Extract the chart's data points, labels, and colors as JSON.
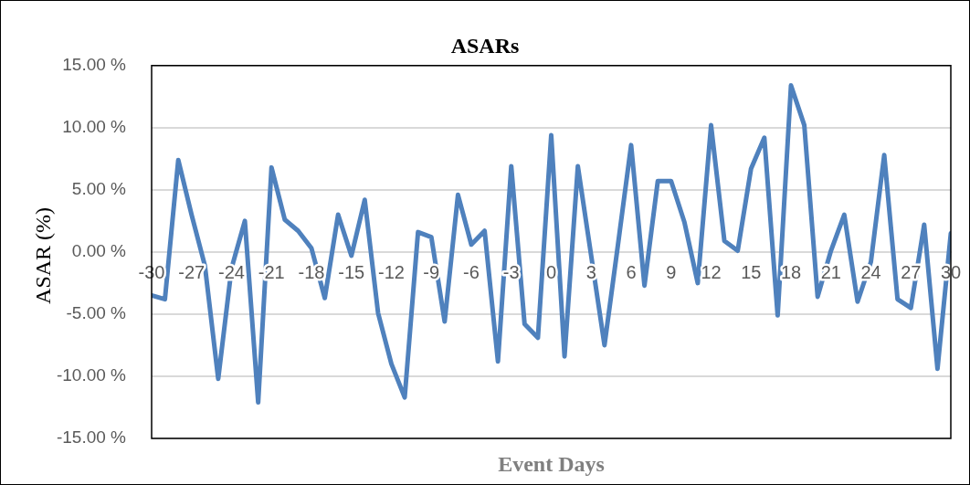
{
  "chart_data": {
    "type": "line",
    "title": "ASARs",
    "xlabel": "Event Days",
    "ylabel": "ASAR (%)",
    "x": [
      -30,
      -29,
      -28,
      -27,
      -26,
      -25,
      -24,
      -23,
      -22,
      -21,
      -20,
      -19,
      -18,
      -17,
      -16,
      -15,
      -14,
      -13,
      -12,
      -11,
      -10,
      -9,
      -8,
      -7,
      -6,
      -5,
      -4,
      -3,
      -2,
      -1,
      0,
      1,
      2,
      3,
      4,
      5,
      6,
      7,
      8,
      9,
      10,
      11,
      12,
      13,
      14,
      15,
      16,
      17,
      18,
      19,
      20,
      21,
      22,
      23,
      24,
      25,
      26,
      27,
      28,
      29,
      30
    ],
    "series": [
      {
        "color": "#4f81bd",
        "values": [
          -3.5,
          -3.8,
          7.4,
          3.0,
          -1.1,
          -10.2,
          -1.3,
          2.5,
          -12.1,
          6.8,
          2.6,
          1.7,
          0.3,
          -3.7,
          3.0,
          -0.3,
          4.2,
          -4.9,
          -9.0,
          -11.7,
          1.6,
          1.2,
          -5.6,
          4.6,
          0.6,
          1.7,
          -8.8,
          6.9,
          -5.8,
          -6.9,
          9.4,
          -8.4,
          6.9,
          -0.3,
          -7.5,
          0.5,
          8.6,
          -2.7,
          5.7,
          5.7,
          2.4,
          -2.5,
          10.2,
          0.9,
          0.1,
          6.7,
          9.2,
          -5.1,
          13.4,
          10.2,
          -3.6,
          0.1,
          3.0,
          -4.0,
          -0.8,
          7.8,
          -3.8,
          -4.5,
          2.2,
          -9.4,
          1.5
        ]
      }
    ],
    "xlim": [
      -30,
      30
    ],
    "xticks": [
      -30,
      -27,
      -24,
      -21,
      -18,
      -15,
      -12,
      -9,
      -6,
      -3,
      0,
      3,
      6,
      9,
      12,
      15,
      18,
      21,
      24,
      27,
      30
    ],
    "ylim": [
      -15,
      15
    ],
    "yticks": [
      {
        "value": -15,
        "label": "-15.00 %"
      },
      {
        "value": -10,
        "label": "-10.00 %"
      },
      {
        "value": -5,
        "label": "-5.00 %"
      },
      {
        "value": 0,
        "label": "0.00 %"
      },
      {
        "value": 5,
        "label": "5.00 %"
      },
      {
        "value": 10,
        "label": "10.00 %"
      },
      {
        "value": 15,
        "label": "15.00 %"
      }
    ],
    "grid": "y",
    "legend": false,
    "marker": "none",
    "line_style": "solid"
  }
}
